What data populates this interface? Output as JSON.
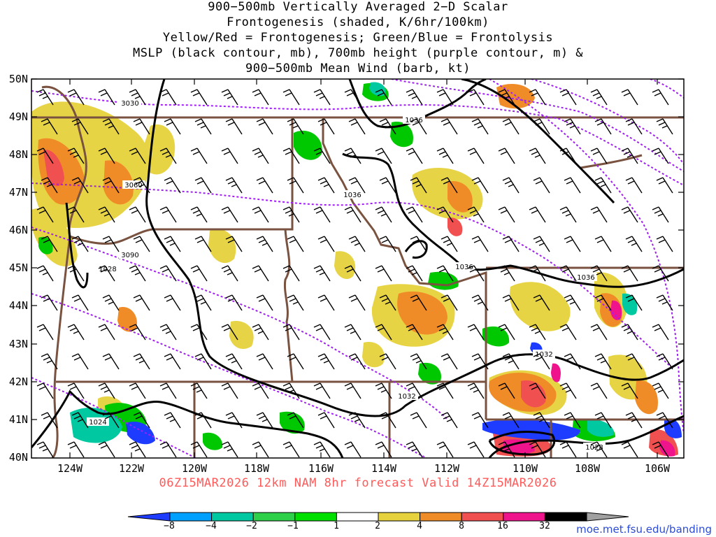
{
  "title_lines": [
    "900−500mb Vertically Averaged 2−D Scalar",
    "Frontogenesis (shaded, K/6hr/100km)",
    "Yellow/Red = Frontogenesis;  Green/Blue = Frontolysis",
    "MSLP (black contour, mb), 700mb height (purple contour, m) &",
    "900−500mb Mean Wind (barb, kt)"
  ],
  "lat_labels": [
    "50N",
    "49N",
    "48N",
    "47N",
    "46N",
    "45N",
    "44N",
    "43N",
    "42N",
    "41N",
    "40N"
  ],
  "lon_labels": [
    "124W",
    "122W",
    "120W",
    "118W",
    "116W",
    "114W",
    "112W",
    "110W",
    "108W",
    "106W"
  ],
  "valid_text": "06Z15MAR2026 12km NAM 8hr forecast Valid 14Z15MAR2026",
  "credit": "moe.met.fsu.edu/banding",
  "contour_labels": {
    "height": [
      "3030",
      "3060",
      "3090"
    ],
    "mslp": [
      "1036",
      "1036",
      "1036",
      "1036",
      "1032",
      "1032",
      "1028",
      "1028",
      "1024"
    ]
  },
  "colorbar": {
    "labels": [
      "−8",
      "−4",
      "−2",
      "−1",
      "1",
      "2",
      "4",
      "8",
      "16",
      "32"
    ],
    "colors": [
      "#1e3cff",
      "#00a0ff",
      "#00c8a0",
      "#2ed04a",
      "#00e000",
      "#ffffff",
      "#e6d23c",
      "#f08c28",
      "#f05050",
      "#f0148c",
      "#000000",
      "#a0a0a0"
    ]
  },
  "colors": {
    "mslp_contour": "#000000",
    "height_contour": "#a020f0",
    "borders": "#7a5240",
    "barbs": "#000000"
  }
}
